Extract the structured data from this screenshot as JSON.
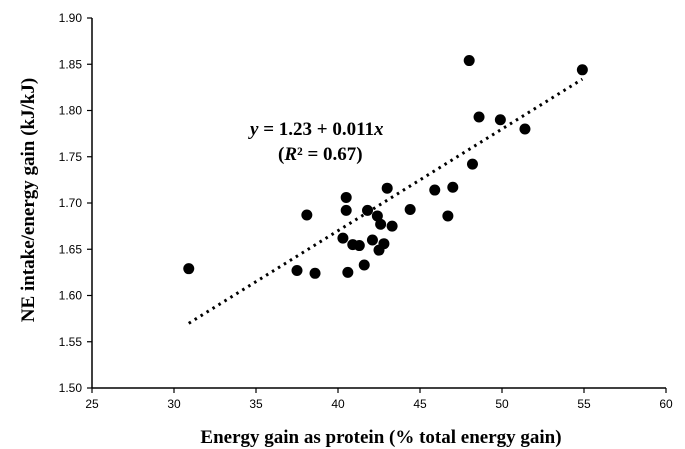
{
  "chart_data": {
    "type": "scatter",
    "title": "",
    "xlabel": "Energy gain as protein (% total energy gain)",
    "ylabel": "NE intake/energy gain (kJ/kJ)",
    "xlim": [
      25,
      60
    ],
    "ylim": [
      1.5,
      1.9
    ],
    "x_ticks": [
      "25",
      "30",
      "35",
      "40",
      "45",
      "50",
      "55",
      "60"
    ],
    "y_ticks": [
      "1.50",
      "1.55",
      "1.60",
      "1.65",
      "1.70",
      "1.75",
      "1.80",
      "1.85",
      "1.90"
    ],
    "grid": false,
    "legend": "none",
    "point_color": "#000000",
    "points": [
      {
        "x": 30.9,
        "y": 1.629
      },
      {
        "x": 37.5,
        "y": 1.627
      },
      {
        "x": 38.1,
        "y": 1.687
      },
      {
        "x": 38.6,
        "y": 1.624
      },
      {
        "x": 40.3,
        "y": 1.662
      },
      {
        "x": 40.5,
        "y": 1.692
      },
      {
        "x": 40.5,
        "y": 1.706
      },
      {
        "x": 40.6,
        "y": 1.625
      },
      {
        "x": 40.9,
        "y": 1.655
      },
      {
        "x": 41.3,
        "y": 1.654
      },
      {
        "x": 41.6,
        "y": 1.633
      },
      {
        "x": 41.8,
        "y": 1.692
      },
      {
        "x": 42.1,
        "y": 1.66
      },
      {
        "x": 42.4,
        "y": 1.686
      },
      {
        "x": 42.5,
        "y": 1.649
      },
      {
        "x": 42.6,
        "y": 1.677
      },
      {
        "x": 42.8,
        "y": 1.656
      },
      {
        "x": 43.0,
        "y": 1.716
      },
      {
        "x": 43.3,
        "y": 1.675
      },
      {
        "x": 44.4,
        "y": 1.693
      },
      {
        "x": 45.9,
        "y": 1.714
      },
      {
        "x": 46.7,
        "y": 1.686
      },
      {
        "x": 47.0,
        "y": 1.717
      },
      {
        "x": 48.0,
        "y": 1.854
      },
      {
        "x": 48.2,
        "y": 1.742
      },
      {
        "x": 48.6,
        "y": 1.793
      },
      {
        "x": 49.9,
        "y": 1.79
      },
      {
        "x": 51.4,
        "y": 1.78
      },
      {
        "x": 54.9,
        "y": 1.844
      }
    ],
    "trendline": {
      "x_start": 30.9,
      "x_end": 54.9,
      "intercept": 1.23,
      "slope": 0.011,
      "style": "dotted"
    },
    "annotations": {
      "equation": {
        "y": "y",
        "eq_rest": " = 1.23 + 0.011",
        "x": "x"
      },
      "r2": {
        "open": "(",
        "r": "R",
        "rest": "² = 0.67)"
      }
    }
  }
}
